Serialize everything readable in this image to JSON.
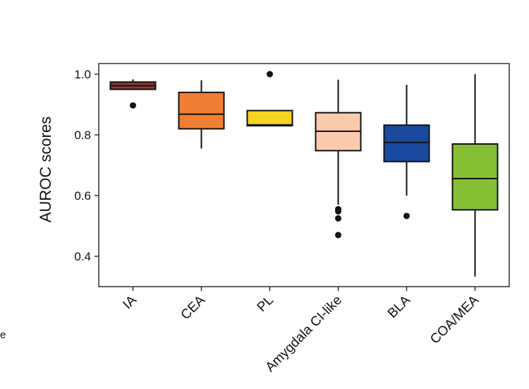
{
  "stray_text": "e",
  "chart_data": {
    "type": "boxplot",
    "ylabel": "AUROC scores",
    "ylim": [
      0.3,
      1.035
    ],
    "yticks": [
      {
        "value": 0.4,
        "label": "0.4"
      },
      {
        "value": 0.6,
        "label": "0.6"
      },
      {
        "value": 0.8,
        "label": "0.8"
      },
      {
        "value": 1.0,
        "label": "1.0"
      }
    ],
    "grid": false,
    "categories": [
      "IA",
      "CEA",
      "PL",
      "Amygdala CI-like",
      "BLA",
      "COA/MEA"
    ],
    "boxes": [
      {
        "category": "IA",
        "color": "#8b3a2f",
        "whisker_low": 0.95,
        "q1": 0.95,
        "median": 0.962,
        "q3": 0.974,
        "whisker_high": 0.983,
        "outliers": [
          0.897
        ]
      },
      {
        "category": "CEA",
        "color": "#f07f33",
        "whisker_low": 0.755,
        "q1": 0.82,
        "median": 0.868,
        "q3": 0.94,
        "whisker_high": 0.98,
        "outliers": []
      },
      {
        "category": "PL",
        "color": "#f5d320",
        "whisker_low": 0.83,
        "q1": 0.83,
        "median": 0.833,
        "q3": 0.88,
        "whisker_high": 0.88,
        "outliers": [
          1.0
        ]
      },
      {
        "category": "Amygdala CI-like",
        "color": "#fbcbb0",
        "whisker_low": 0.57,
        "q1": 0.748,
        "median": 0.812,
        "q3": 0.873,
        "whisker_high": 0.982,
        "outliers": [
          0.555,
          0.548,
          0.525,
          0.47
        ]
      },
      {
        "category": "BLA",
        "color": "#1a4aa0",
        "whisker_low": 0.6,
        "q1": 0.712,
        "median": 0.775,
        "q3": 0.832,
        "whisker_high": 0.965,
        "outliers": [
          0.533
        ]
      },
      {
        "category": "COA/MEA",
        "color": "#86bf33",
        "whisker_low": 0.333,
        "q1": 0.553,
        "median": 0.656,
        "q3": 0.77,
        "whisker_high": 1.0,
        "outliers": []
      }
    ]
  }
}
